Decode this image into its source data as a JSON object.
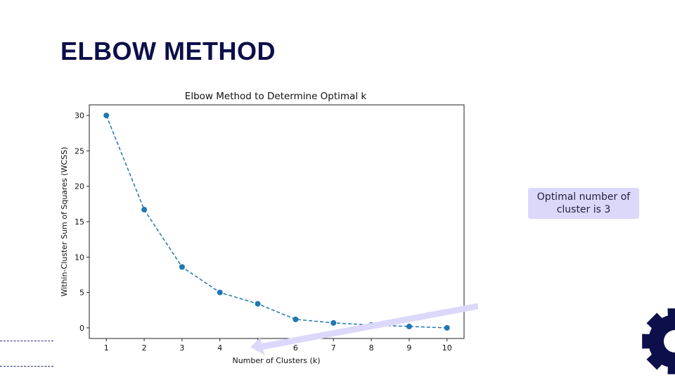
{
  "slide": {
    "title": "ELBOW METHOD",
    "callout_text": "Optimal number of cluster is 3"
  },
  "colors": {
    "title": "#0d0f4a",
    "series": "#1f77b4",
    "arrow": "#dcd8fb",
    "gear": "#0d0f4a"
  },
  "icons": {
    "corner": "gear-icon"
  },
  "chart_data": {
    "type": "line",
    "title": "Elbow Method to Determine Optimal k",
    "xlabel": "Number of Clusters (k)",
    "ylabel": "Within-Cluster Sum of Squares (WCSS)",
    "x": [
      1,
      2,
      3,
      4,
      5,
      6,
      7,
      8,
      9,
      10
    ],
    "series": [
      {
        "values": [
          30.0,
          16.7,
          8.6,
          5.0,
          3.4,
          1.2,
          0.7,
          0.4,
          0.2,
          0.0
        ]
      }
    ],
    "xticks": [
      1,
      2,
      3,
      4,
      5,
      6,
      7,
      8,
      9,
      10
    ],
    "yticks": [
      0,
      5,
      10,
      15,
      20,
      25,
      30
    ],
    "xlim": [
      0.55,
      10.45
    ],
    "ylim": [
      -1.5,
      31.5
    ],
    "line_style": "dashed",
    "marker": "circle",
    "grid": false,
    "legend": "none"
  }
}
